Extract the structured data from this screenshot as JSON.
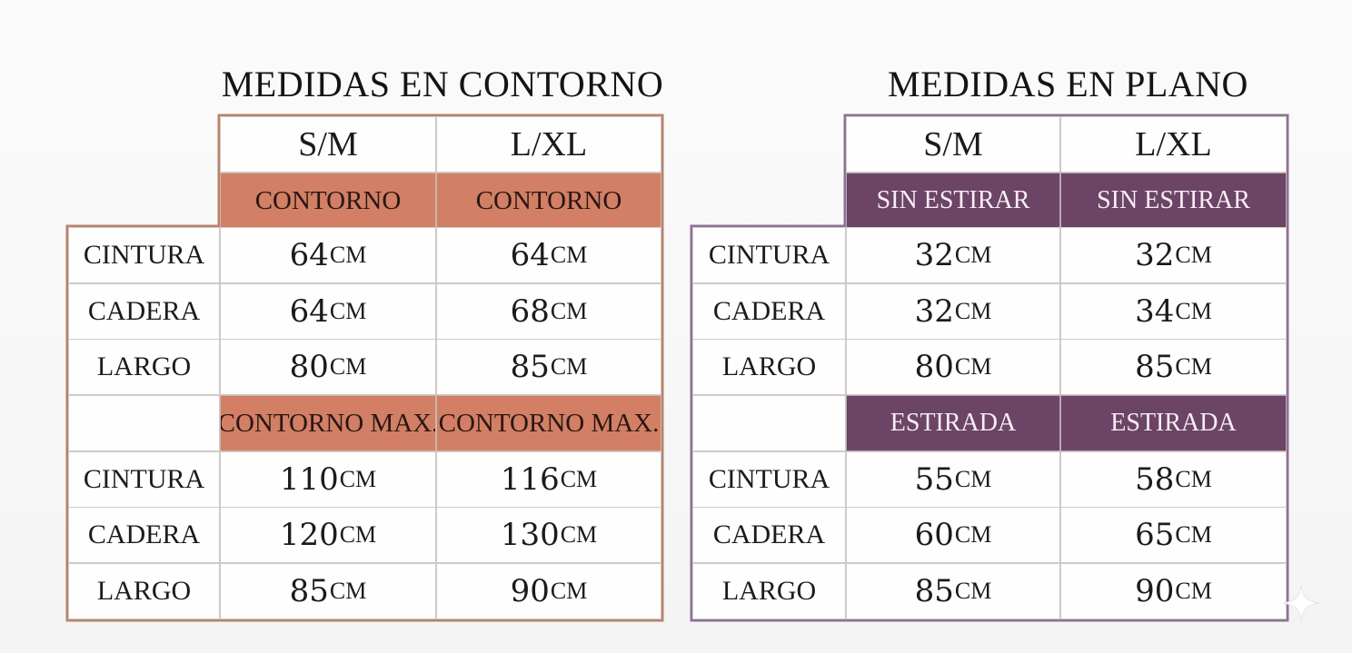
{
  "contorno": {
    "title": "MEDIDAS EN CONTORNO",
    "sizes": [
      "S/M",
      "L/XL"
    ],
    "band1": [
      "CONTORNO",
      "CONTORNO"
    ],
    "band2": [
      "CONTORNO MAX.",
      "CONTORNO MAX."
    ],
    "rows1": [
      {
        "label": "CINTURA",
        "sm": "64",
        "lxl": "64"
      },
      {
        "label": "CADERA",
        "sm": "64",
        "lxl": "68"
      },
      {
        "label": "LARGO",
        "sm": "80",
        "lxl": "85"
      }
    ],
    "rows2": [
      {
        "label": "CINTURA",
        "sm": "110",
        "lxl": "116"
      },
      {
        "label": "CADERA",
        "sm": "120",
        "lxl": "130"
      },
      {
        "label": "LARGO",
        "sm": "85",
        "lxl": "90"
      }
    ],
    "accent": "#d27f66",
    "frame_color": "#b8826c"
  },
  "plano": {
    "title": "MEDIDAS EN PLANO",
    "sizes": [
      "S/M",
      "L/XL"
    ],
    "band1": [
      "SIN ESTIRAR",
      "SIN ESTIRAR"
    ],
    "band2": [
      "ESTIRADA",
      "ESTIRADA"
    ],
    "rows1": [
      {
        "label": "CINTURA",
        "sm": "32",
        "lxl": "32"
      },
      {
        "label": "CADERA",
        "sm": "32",
        "lxl": "34"
      },
      {
        "label": "LARGO",
        "sm": "80",
        "lxl": "85"
      }
    ],
    "rows2": [
      {
        "label": "CINTURA",
        "sm": "55",
        "lxl": "58"
      },
      {
        "label": "CADERA",
        "sm": "60",
        "lxl": "65"
      },
      {
        "label": "LARGO",
        "sm": "85",
        "lxl": "90"
      }
    ],
    "accent": "#6c4466",
    "frame_color": "#8e7199"
  },
  "unit": "CM",
  "decor_icon": "sparkle-icon"
}
